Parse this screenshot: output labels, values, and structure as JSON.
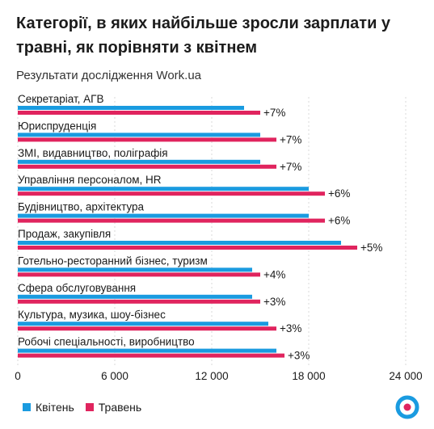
{
  "header": {
    "title": "Категорії, в яких найбільше зросли зарплати у травні, як порівняти з квітнем",
    "subtitle": "Результати дослідження Work.ua"
  },
  "chart_data": {
    "type": "bar",
    "orientation": "horizontal",
    "categories": [
      "Секретаріат, АГВ",
      "Юриспруденція",
      "ЗМІ, видавництво, поліграфія",
      "Управління персоналом, HR",
      "Будівництво, архітектура",
      "Продаж, закупівля",
      "Готельно-ресторанний бізнес, туризм",
      "Сфера обслуговування",
      "Культура, музика, шоу-бізнес",
      "Робочі спеціальності, виробництво"
    ],
    "series": [
      {
        "name": "Квітень",
        "color": "#1a9be0",
        "values": [
          14000,
          15000,
          15000,
          18000,
          18000,
          20000,
          14500,
          14500,
          15500,
          16000
        ]
      },
      {
        "name": "Травень",
        "color": "#e0245e",
        "values": [
          15000,
          16000,
          16000,
          19000,
          19000,
          21000,
          15000,
          15000,
          16000,
          16500
        ]
      }
    ],
    "change_labels": [
      "+7%",
      "+7%",
      "+7%",
      "+6%",
      "+6%",
      "+5%",
      "+4%",
      "+3%",
      "+3%",
      "+3%"
    ],
    "xlim": [
      0,
      24000
    ],
    "xticks": [
      0,
      6000,
      12000,
      18000,
      24000
    ],
    "xtick_labels": [
      "0",
      "6 000",
      "12 000",
      "18 000",
      "24 000"
    ],
    "grid": true,
    "legend_position": "bottom-left"
  },
  "legend": {
    "items": [
      {
        "label": "Квітень",
        "color": "#1a9be0"
      },
      {
        "label": "Травень",
        "color": "#e0245e"
      }
    ]
  },
  "logo": {
    "icon": "work-ua-logo-icon",
    "ring_color": "#1a9be0",
    "dot_color": "#e0245e"
  }
}
